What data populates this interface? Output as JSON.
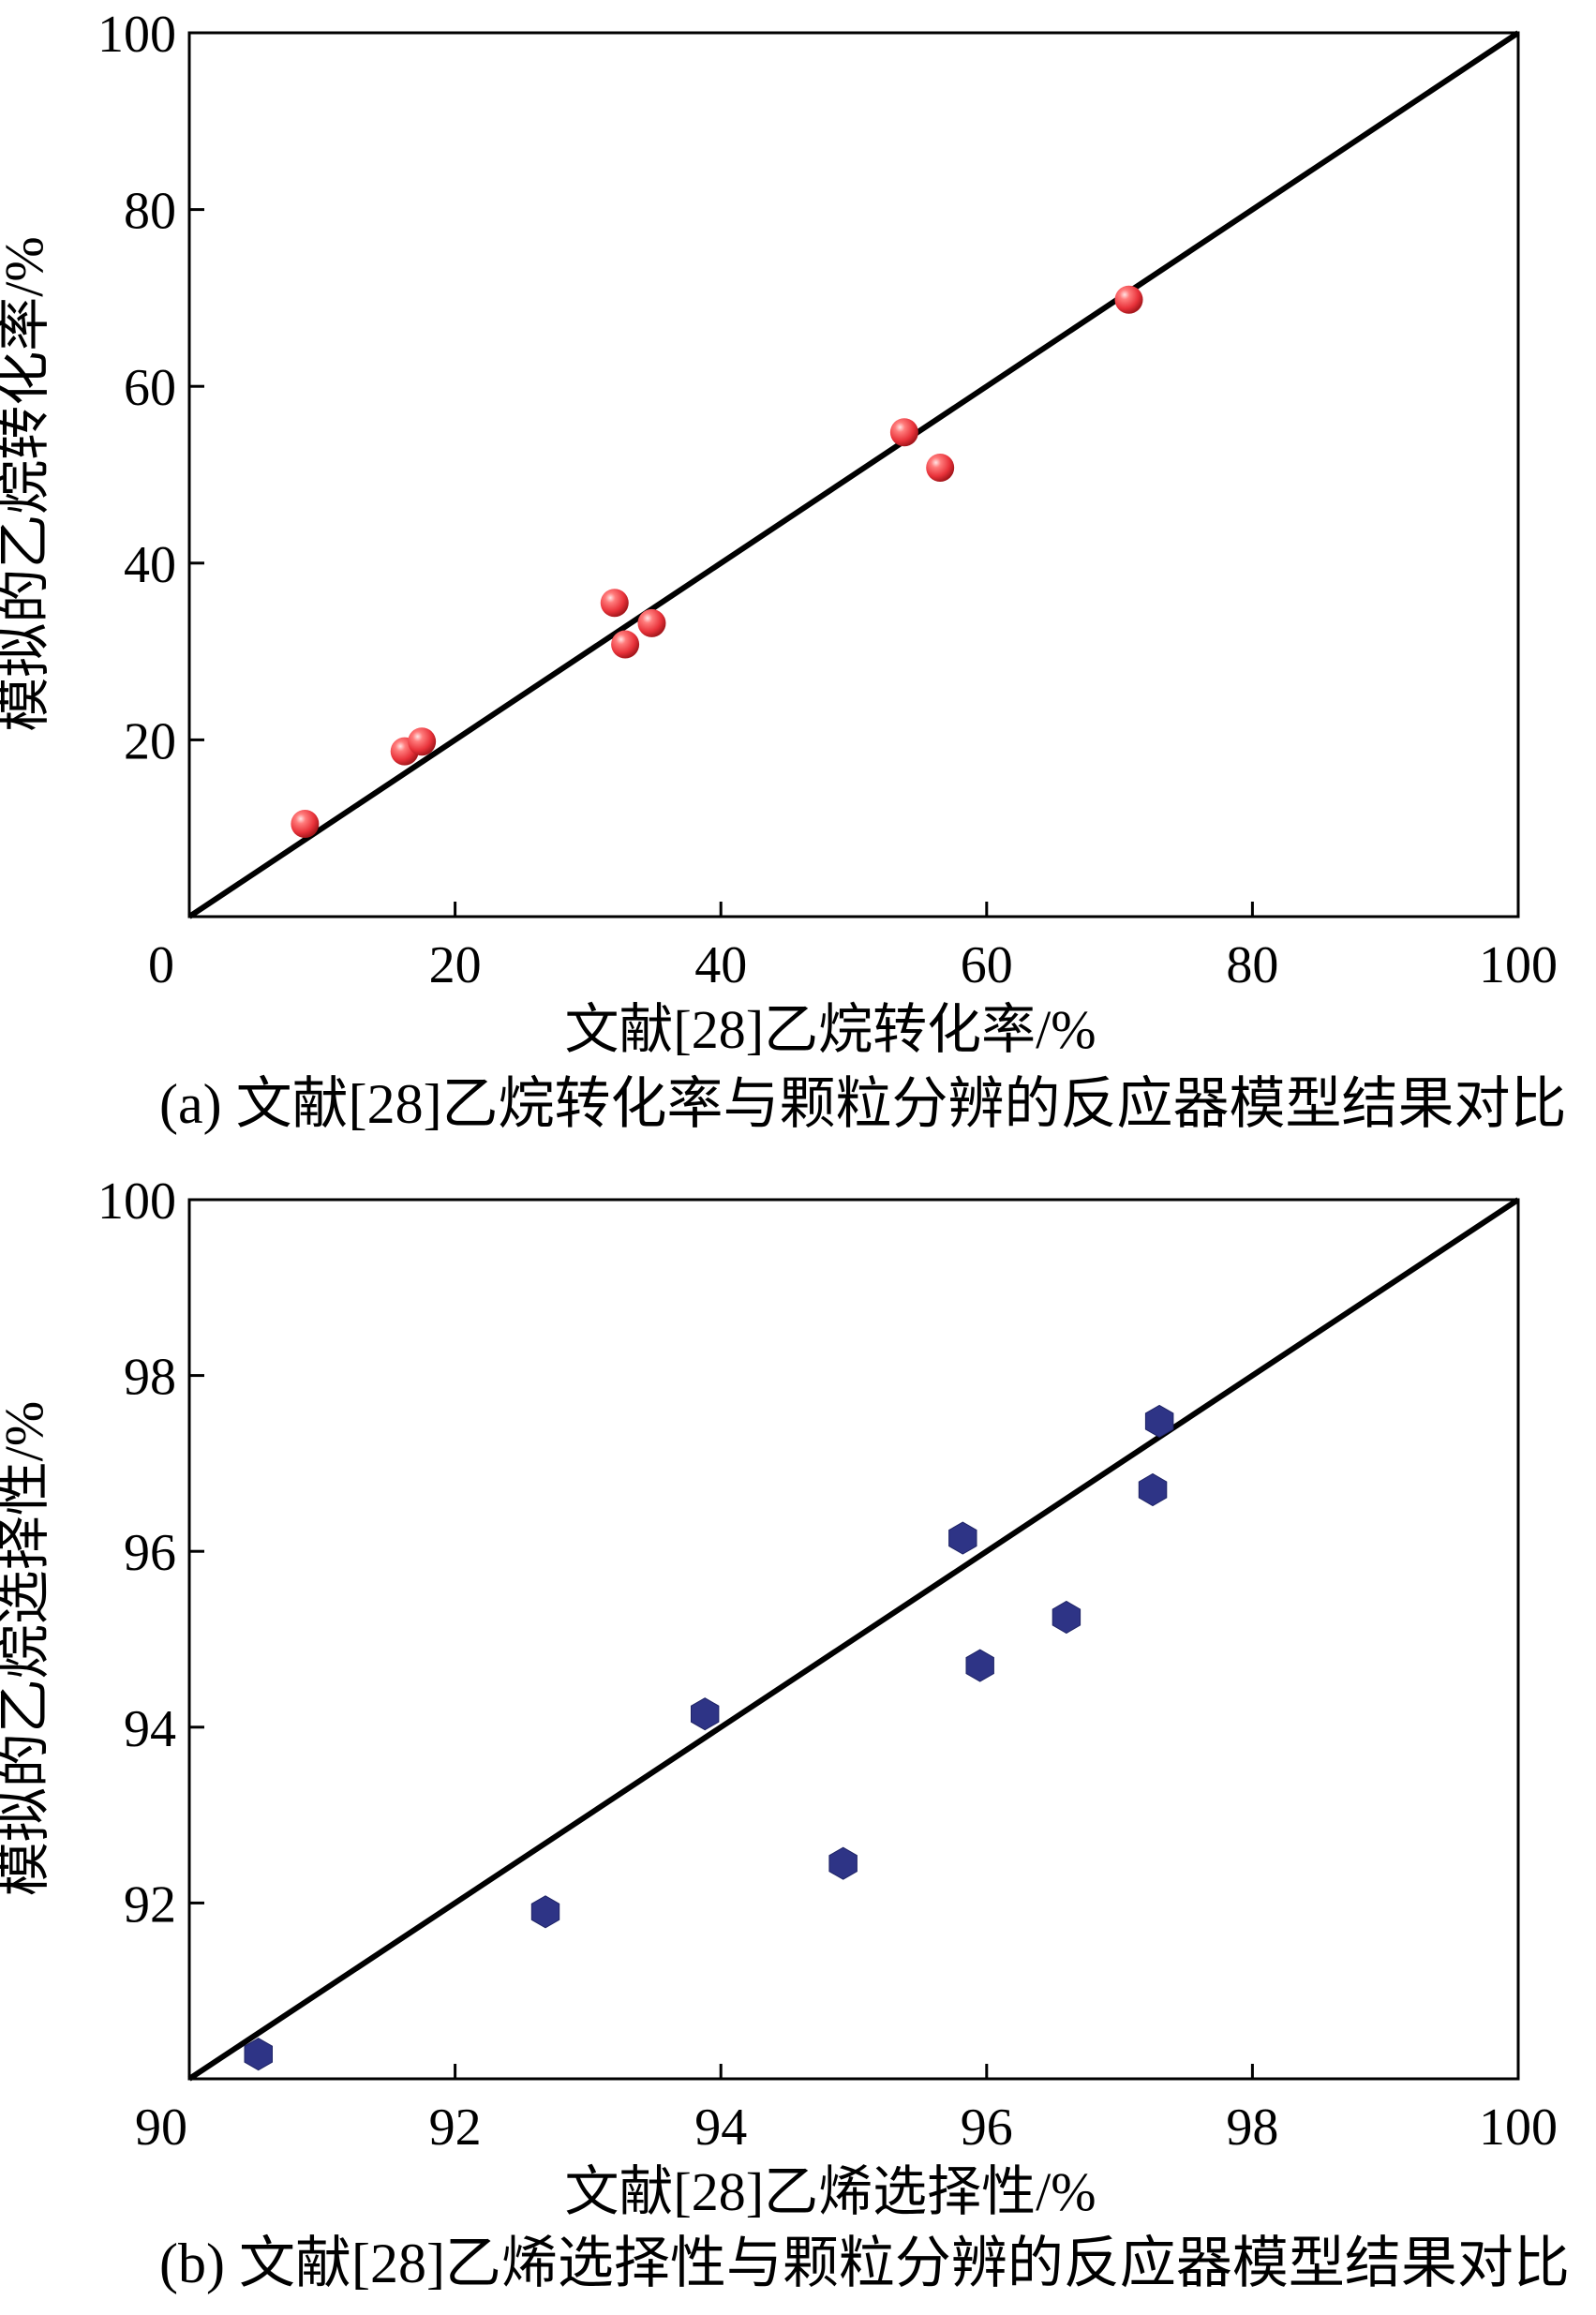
{
  "chart_data": [
    {
      "type": "scatter",
      "caption": "(a) 文献[28]乙烷转化率与颗粒分辨的反应器模型结果对比",
      "xlabel": "文献[28]乙烷转化率/%",
      "ylabel": "模拟的乙烷转化率/%",
      "xlim": [
        0,
        100
      ],
      "ylim": [
        0,
        100
      ],
      "xticks": [
        "0",
        "20",
        "40",
        "60",
        "80",
        "100"
      ],
      "yticks": [
        "20",
        "40",
        "60",
        "80",
        "100"
      ],
      "xtick_values": [
        0,
        20,
        40,
        60,
        80,
        100
      ],
      "ytick_values": [
        20,
        40,
        60,
        80,
        100
      ],
      "reference_line": [
        [
          0,
          0
        ],
        [
          100,
          100
        ]
      ],
      "marker": "sphere",
      "marker_color": "#e8323a",
      "points": [
        {
          "x": 8.7,
          "y": 10.5
        },
        {
          "x": 16.2,
          "y": 18.7
        },
        {
          "x": 17.5,
          "y": 19.8
        },
        {
          "x": 32.0,
          "y": 35.5
        },
        {
          "x": 32.8,
          "y": 30.8
        },
        {
          "x": 34.8,
          "y": 33.2
        },
        {
          "x": 53.8,
          "y": 54.8
        },
        {
          "x": 56.5,
          "y": 50.8
        },
        {
          "x": 70.7,
          "y": 69.8
        }
      ]
    },
    {
      "type": "scatter",
      "caption": "(b) 文献[28]乙烯选择性与颗粒分辨的反应器模型结果对比",
      "xlabel": "文献[28]乙烯选择性/%",
      "ylabel": "模拟的乙烷选择性/%",
      "xlim": [
        90,
        100
      ],
      "ylim": [
        90,
        100
      ],
      "xticks": [
        "90",
        "92",
        "94",
        "96",
        "98",
        "100"
      ],
      "yticks": [
        "92",
        "94",
        "96",
        "98",
        "100"
      ],
      "xtick_values": [
        90,
        92,
        94,
        96,
        98,
        100
      ],
      "ytick_values": [
        92,
        94,
        96,
        98,
        100
      ],
      "reference_line": [
        [
          90,
          90
        ],
        [
          100,
          100
        ]
      ],
      "marker": "hexagon",
      "marker_color": "#2e3486",
      "points": [
        {
          "x": 90.52,
          "y": 90.28
        },
        {
          "x": 92.68,
          "y": 91.9
        },
        {
          "x": 93.88,
          "y": 94.15
        },
        {
          "x": 94.92,
          "y": 92.45
        },
        {
          "x": 95.82,
          "y": 96.15
        },
        {
          "x": 95.95,
          "y": 94.7
        },
        {
          "x": 96.6,
          "y": 95.25
        },
        {
          "x": 97.25,
          "y": 96.7
        },
        {
          "x": 97.3,
          "y": 97.48
        }
      ]
    }
  ]
}
